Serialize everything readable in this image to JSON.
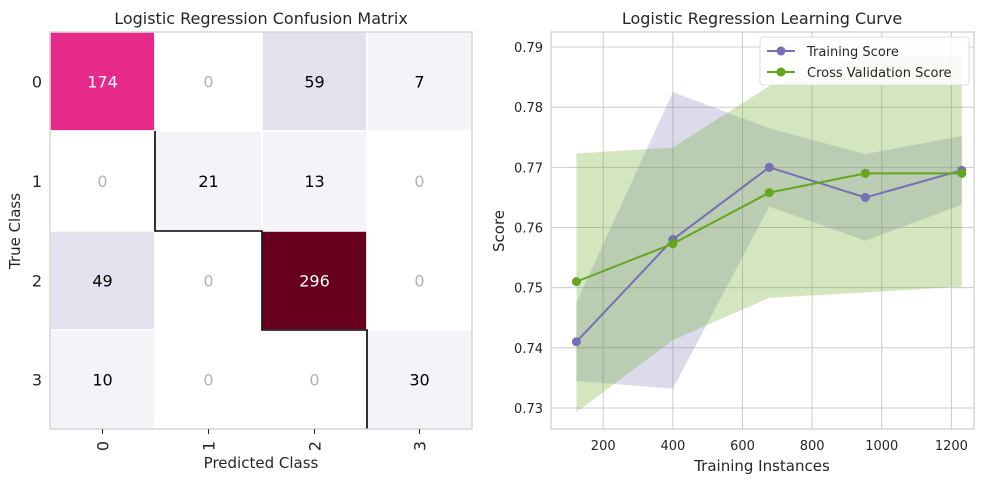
{
  "colors": {
    "training": "#7570b3",
    "cv": "#66a61e",
    "grid": "#cccccc",
    "cell_text_dark": "#000000",
    "cell_text_light": "#ffffff",
    "cell_text_zero": "#b3b3b3"
  },
  "chart_data": [
    {
      "type": "heatmap",
      "title": "Logistic Regression Confusion Matrix",
      "xlabel": "Predicted Class",
      "ylabel": "True Class",
      "x_categories": [
        "0",
        "1",
        "2",
        "3"
      ],
      "y_categories": [
        "0",
        "1",
        "2",
        "3"
      ],
      "matrix": [
        [
          174,
          0,
          59,
          7
        ],
        [
          0,
          21,
          13,
          0
        ],
        [
          49,
          0,
          296,
          0
        ],
        [
          10,
          0,
          0,
          30
        ]
      ],
      "cell_colors": [
        [
          "#e7298a",
          "#ffffff",
          "#e5e0ee",
          "#f5f3f8"
        ],
        [
          "#ffffff",
          "#f5f3f8",
          "#f5f3f8",
          "#ffffff"
        ],
        [
          "#e5e0ee",
          "#ffffff",
          "#67001f",
          "#ffffff"
        ],
        [
          "#f5f3f8",
          "#ffffff",
          "#ffffff",
          "#f5f3f8"
        ]
      ]
    },
    {
      "type": "line",
      "title": "Logistic Regression Learning Curve",
      "xlabel": "Training Instances",
      "ylabel": "Score",
      "xlim": [
        50,
        1265
      ],
      "ylim": [
        0.7265,
        0.7925
      ],
      "xticks": [
        200,
        400,
        600,
        800,
        1000,
        1200
      ],
      "yticks": [
        0.73,
        0.74,
        0.75,
        0.76,
        0.77,
        0.78,
        0.79
      ],
      "x": [
        123,
        400,
        677,
        953,
        1230
      ],
      "grid": true,
      "legend": "top-right",
      "series": [
        {
          "name": "Training Score",
          "values": [
            0.741,
            0.758,
            0.77,
            0.765,
            0.7695
          ],
          "band_upper": [
            0.7475,
            0.7825,
            0.7765,
            0.7722,
            0.7752
          ],
          "band_lower": [
            0.7345,
            0.7332,
            0.7635,
            0.7578,
            0.7638
          ]
        },
        {
          "name": "Cross Validation Score",
          "values": [
            0.751,
            0.7573,
            0.7658,
            0.769,
            0.769
          ],
          "band_upper": [
            0.7723,
            0.7733,
            0.7835,
            0.7885,
            0.7885
          ],
          "band_lower": [
            0.7293,
            0.7413,
            0.7483,
            0.7492,
            0.7502
          ]
        }
      ]
    }
  ]
}
